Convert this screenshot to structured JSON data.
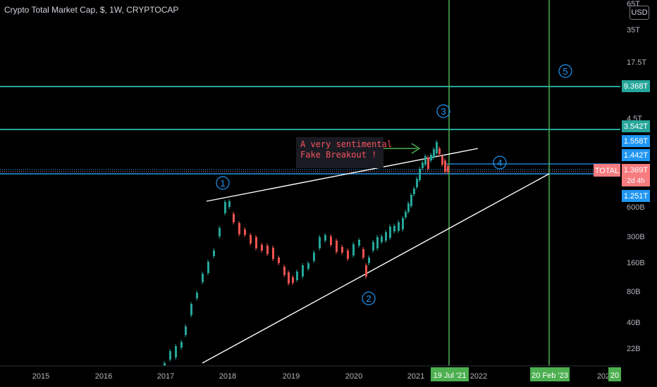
{
  "header": {
    "title": "Crypto Total Market Cap, $, 1W, CRYPTOCAP",
    "currency_button": "USD"
  },
  "chart_data": {
    "type": "candlestick",
    "y_scale": "log",
    "y_axis_labels": [
      "65T",
      "35T",
      "17.5T",
      "4.5T",
      "600B",
      "300B",
      "160B",
      "80B",
      "40B",
      "22B"
    ],
    "x_axis_labels": [
      "2015",
      "2016",
      "2017",
      "2018",
      "2019",
      "2020",
      "2021",
      "2022",
      "202"
    ],
    "price_tags": [
      {
        "label": "9.368T",
        "color": "#26a69a"
      },
      {
        "label": "3.542T",
        "color": "#26a69a"
      },
      {
        "label": "1.558T",
        "color": "#2196f3"
      },
      {
        "label": "1.442T",
        "color": "#2196f3"
      },
      {
        "label": "1.369T",
        "color": "#f77c80"
      },
      {
        "label": "2d 4h",
        "color": "#f77c80"
      },
      {
        "label": "1.251T",
        "color": "#2196f3"
      }
    ],
    "symbol_tag": "TOTAL",
    "date_tags": [
      "19 Jul '21",
      "20 Feb '23",
      "20"
    ],
    "wave_labels": [
      "1",
      "2",
      "3",
      "4",
      "5"
    ],
    "annotation": [
      "A very sentimental",
      "Fake Breakout !"
    ]
  },
  "colors": {
    "up": "#26a69a",
    "down": "#ef5350",
    "bg": "#000000"
  }
}
